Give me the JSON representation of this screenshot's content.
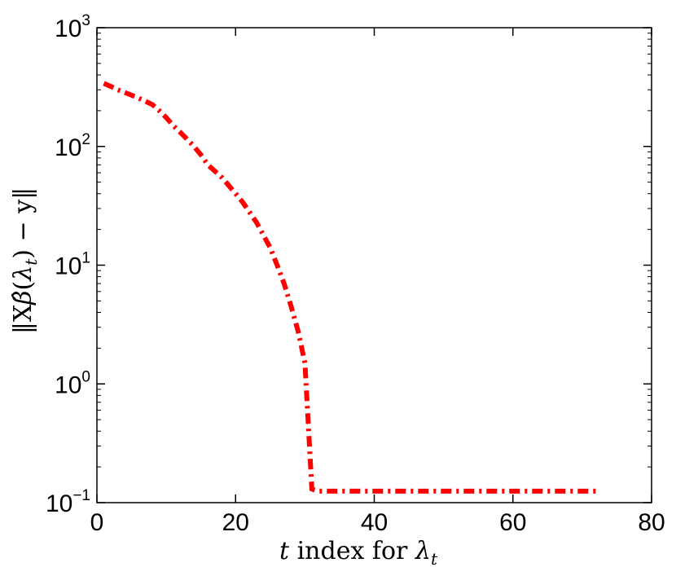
{
  "chart_data": {
    "type": "line",
    "xlabel": "t index for λt",
    "xlabel_parts": {
      "var": "t",
      "text": " index for ",
      "lambda": "λ",
      "sub": "t"
    },
    "ylabel": "‖Xβ̂(λt) − y‖",
    "ylabel_parts": {
      "open": "‖X",
      "beta": "β̂",
      "lparen": "(",
      "lambda": "λ",
      "sub": "t",
      "rest": ") − y‖"
    },
    "xlim": [
      0,
      80
    ],
    "ylim": [
      0.1,
      1000
    ],
    "yscale": "log",
    "grid": false,
    "legend": "none",
    "x_ticks": [
      {
        "value": 0,
        "label": "0"
      },
      {
        "value": 20,
        "label": "20"
      },
      {
        "value": 40,
        "label": "40"
      },
      {
        "value": 60,
        "label": "60"
      },
      {
        "value": 80,
        "label": "80"
      }
    ],
    "y_ticks": [
      {
        "value": 0.1,
        "base": "10",
        "exp": "−1"
      },
      {
        "value": 1,
        "base": "10",
        "exp": "0"
      },
      {
        "value": 10,
        "base": "10",
        "exp": "1"
      },
      {
        "value": 100,
        "base": "10",
        "exp": "2"
      },
      {
        "value": 1000,
        "base": "10",
        "exp": "3"
      }
    ],
    "series": [
      {
        "color": "#ff0000",
        "style": "dash-dot",
        "x": [
          1,
          2,
          3,
          4,
          5,
          6,
          7,
          8,
          9,
          10,
          11,
          12,
          13,
          14,
          15,
          16,
          17,
          18,
          19,
          20,
          21,
          22,
          23,
          24,
          25,
          26,
          27,
          28,
          29,
          30,
          31,
          32,
          33,
          34,
          35,
          40,
          45,
          50,
          55,
          60,
          65,
          70,
          72
        ],
        "y": [
          340,
          320,
          300,
          285,
          270,
          255,
          240,
          225,
          200,
          175,
          150,
          132,
          115,
          100,
          85,
          70,
          62,
          55,
          47,
          40,
          34,
          28,
          23,
          18,
          14,
          10,
          7,
          4.5,
          2.8,
          1.5,
          0.13,
          0.125,
          0.125,
          0.125,
          0.125,
          0.125,
          0.125,
          0.125,
          0.125,
          0.125,
          0.125,
          0.125,
          0.125
        ]
      }
    ]
  }
}
